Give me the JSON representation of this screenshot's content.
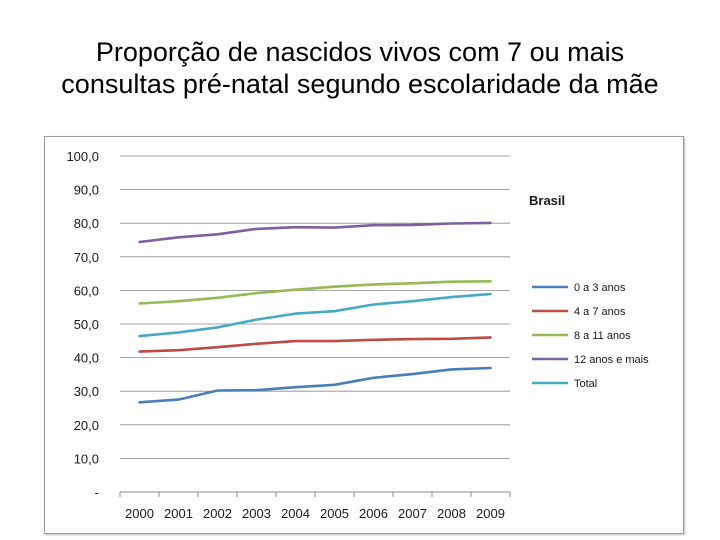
{
  "title_lines": [
    "Proporção de nascidos vivos com 7 ou mais",
    "consultas pré-natal segundo  escolaridade da mãe"
  ],
  "chart_data": {
    "type": "line",
    "title": "Brasil",
    "xlabel": "",
    "ylabel": "",
    "ylim": [
      0,
      100
    ],
    "y_tick_labels": [
      "-",
      "10,0",
      "20,0",
      "30,0",
      "40,0",
      "50,0",
      "60,0",
      "70,0",
      "80,0",
      "90,0",
      "100,0"
    ],
    "categories": [
      "2000",
      "2001",
      "2002",
      "2003",
      "2004",
      "2005",
      "2006",
      "2007",
      "2008",
      "2009"
    ],
    "legend_position": "right",
    "series": [
      {
        "name": "0 a 3 anos",
        "color": "#4a7ebb",
        "values": [
          26.7,
          27.5,
          30.2,
          30.3,
          31.2,
          31.9,
          34.0,
          35.1,
          36.5,
          36.9
        ]
      },
      {
        "name": "4 a 7 anos",
        "color": "#be4b48",
        "values": [
          41.8,
          42.2,
          43.1,
          44.1,
          44.9,
          44.9,
          45.3,
          45.5,
          45.6,
          46.0
        ]
      },
      {
        "name": "8 a 11 anos",
        "color": "#98b954",
        "values": [
          56.1,
          56.8,
          57.8,
          59.2,
          60.2,
          61.1,
          61.8,
          62.1,
          62.6,
          62.7
        ]
      },
      {
        "name": "12 anos e mais",
        "color": "#7d60a0",
        "values": [
          74.4,
          75.8,
          76.7,
          78.3,
          78.8,
          78.7,
          79.4,
          79.5,
          79.9,
          80.1
        ]
      },
      {
        "name": "Total",
        "color": "#46aac5",
        "values": [
          46.4,
          47.5,
          49.0,
          51.3,
          53.1,
          53.8,
          55.8,
          56.8,
          58.0,
          58.9
        ]
      }
    ]
  }
}
